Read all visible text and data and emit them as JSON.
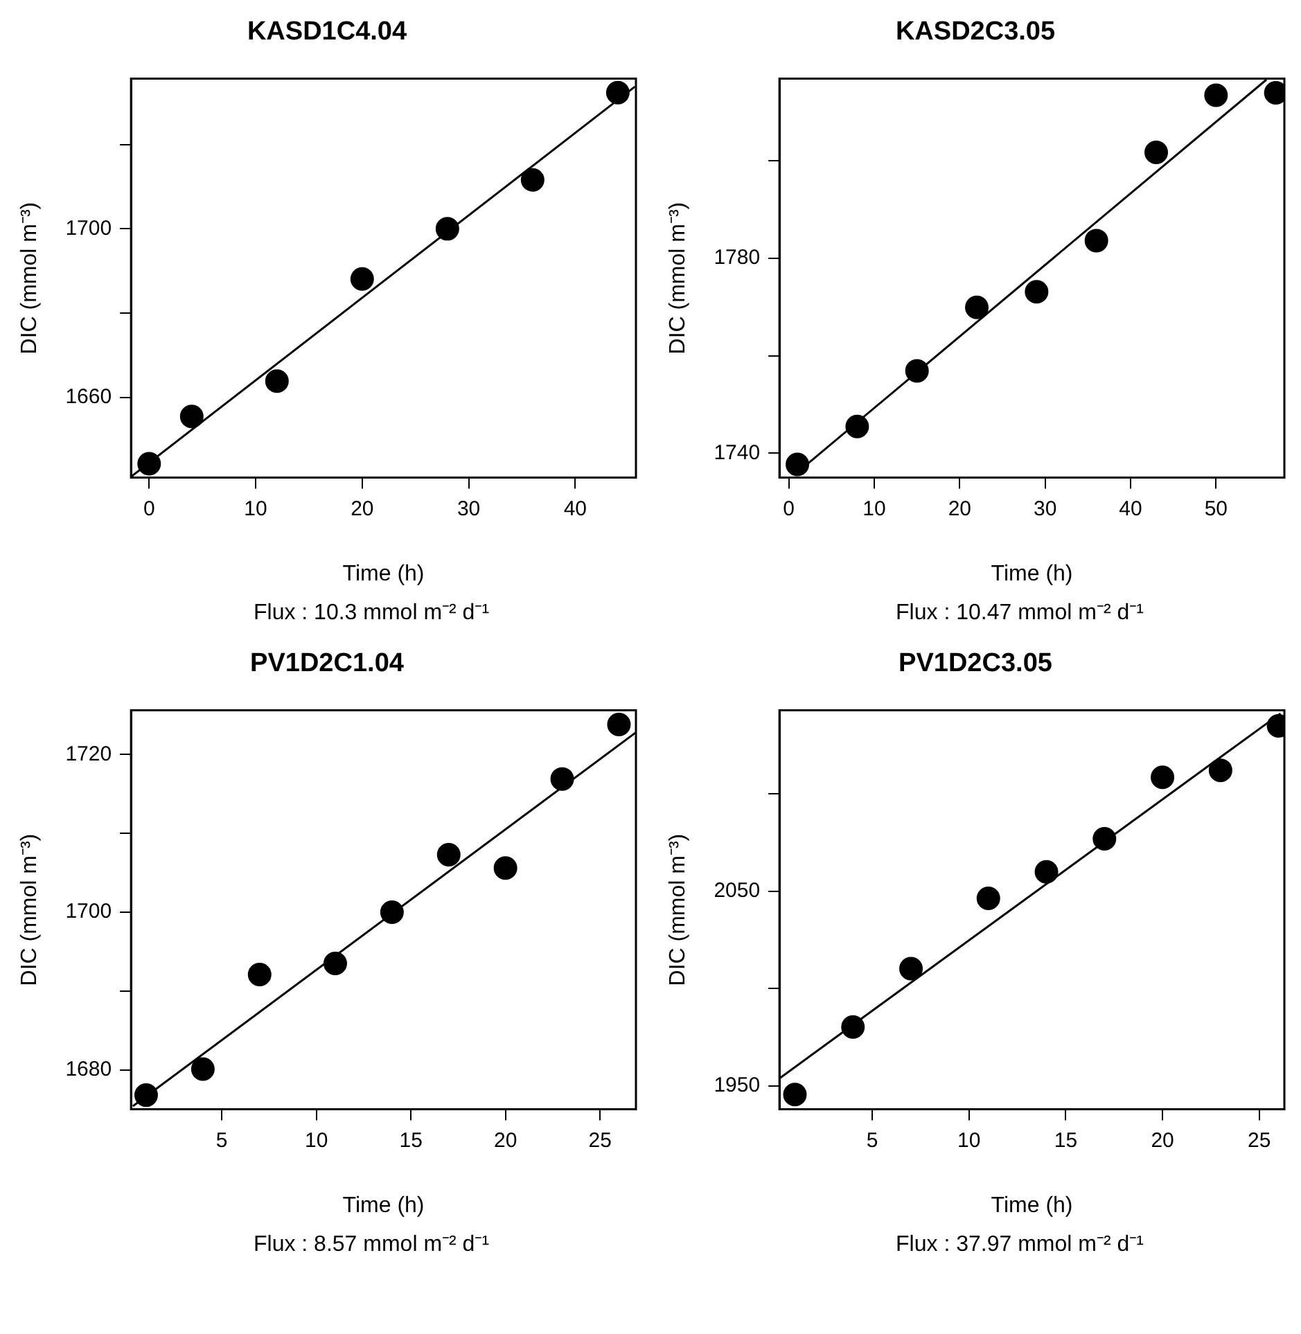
{
  "chart_data": [
    {
      "type": "scatter",
      "title": "KASD1C4.04",
      "xlabel": "Time (h)",
      "ylabel": "DIC (mmol m⁻³)",
      "annotations": [
        "Flux :  10.3 mmol m⁻² d⁻¹"
      ],
      "xlim": [
        -1.7,
        45.7
      ],
      "xticks": [
        0,
        10,
        20,
        30,
        40
      ],
      "ylim": [
        1641,
        1735.6
      ],
      "yticks": [
        1660,
        {
          "value": 1680,
          "label": null
        },
        1700,
        {
          "value": 1720,
          "label": null
        }
      ],
      "grid": false,
      "legend": false,
      "series": [
        {
          "type": "scatter",
          "marker": "circle",
          "color": "#000000",
          "x": [
            0,
            4,
            12,
            20,
            28,
            36,
            44
          ],
          "values": [
            1644.3,
            1655.5,
            1663.9,
            1688.1,
            1700,
            1711.6,
            1732.3
          ]
        },
        {
          "type": "line",
          "color": "#000000",
          "x": [
            -1.7,
            45.6
          ],
          "values": [
            1641.2,
            1733.7
          ]
        }
      ]
    },
    {
      "type": "scatter",
      "title": "KASD2C3.05",
      "xlabel": "Time (h)",
      "ylabel": "DIC (mmol m⁻³)",
      "annotations": [
        "Flux :  10.47 mmol m⁻² d⁻¹"
      ],
      "xlim": [
        -1.1,
        58
      ],
      "xticks": [
        0,
        10,
        20,
        30,
        40,
        50
      ],
      "ylim": [
        1735,
        1816.8
      ],
      "yticks": [
        1740,
        {
          "value": 1760,
          "label": null
        },
        1780,
        {
          "value": 1800,
          "label": null
        }
      ],
      "grid": false,
      "legend": false,
      "series": [
        {
          "type": "scatter",
          "marker": "circle",
          "color": "#000000",
          "x": [
            1,
            8,
            15,
            22,
            29,
            36,
            43,
            50,
            57
          ],
          "values": [
            1737.7,
            1745.5,
            1756.9,
            1769.9,
            1773.1,
            1783.6,
            1801.7,
            1813.4,
            1813.9
          ]
        },
        {
          "type": "line",
          "color": "#000000",
          "x": [
            0.6,
            55.9
          ],
          "values": [
            1735.5,
            1816.6
          ]
        }
      ]
    },
    {
      "type": "scatter",
      "title": "PV1D2C1.04",
      "xlabel": "Time (h)",
      "ylabel": "DIC (mmol m⁻³)",
      "annotations": [
        "Flux :  8.57 mmol m⁻² d⁻¹"
      ],
      "xlim": [
        0.2,
        26.9
      ],
      "xticks": [
        5,
        10,
        15,
        20,
        25
      ],
      "ylim": [
        1675,
        1725.6
      ],
      "yticks": [
        1680,
        {
          "value": 1690,
          "label": null
        },
        1700,
        {
          "value": 1710,
          "label": null
        },
        1720
      ],
      "grid": false,
      "legend": false,
      "series": [
        {
          "type": "scatter",
          "marker": "circle",
          "color": "#000000",
          "x": [
            1,
            4,
            7,
            11,
            14,
            17,
            20,
            23,
            26
          ],
          "values": [
            1676.8,
            1680.1,
            1692.1,
            1693.5,
            1700,
            1707.3,
            1705.6,
            1716.9,
            1723.8
          ]
        },
        {
          "type": "line",
          "color": "#000000",
          "x": [
            0.3,
            26.9
          ],
          "values": [
            1675.4,
            1722.8
          ]
        }
      ]
    },
    {
      "type": "scatter",
      "title": "PV1D2C3.05",
      "xlabel": "Time (h)",
      "ylabel": "DIC (mmol m⁻³)",
      "annotations": [
        "Flux :  37.97 mmol m⁻² d⁻¹"
      ],
      "xlim": [
        0.2,
        26.3
      ],
      "xticks": [
        5,
        10,
        15,
        20,
        25
      ],
      "ylim": [
        1938,
        2143
      ],
      "yticks": [
        1950,
        {
          "value": 2000,
          "label": null
        },
        2050,
        {
          "value": 2100,
          "label": null
        }
      ],
      "grid": false,
      "legend": false,
      "series": [
        {
          "type": "scatter",
          "marker": "circle",
          "color": "#000000",
          "x": [
            1,
            4,
            7,
            11,
            14,
            17,
            20,
            23,
            26
          ],
          "values": [
            1945.6,
            1980.3,
            2010.3,
            2046.4,
            2060,
            2077,
            2108.6,
            2112.2,
            2135
          ]
        },
        {
          "type": "line",
          "color": "#000000",
          "x": [
            0.2,
            26.1
          ],
          "values": [
            1953.9,
            2141.4
          ]
        }
      ]
    }
  ]
}
